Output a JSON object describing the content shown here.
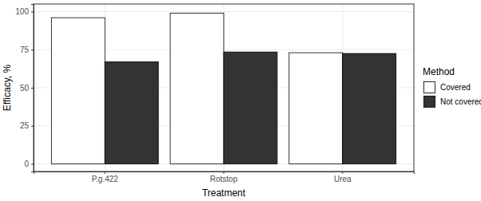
{
  "chart_data": {
    "type": "bar",
    "x_label": "Treatment",
    "y_label": "Efficacy, %",
    "legend_title": "Method",
    "categories": [
      "P.g.422",
      "Rotstop",
      "Urea"
    ],
    "series": [
      {
        "name": "Covered",
        "color": "#ffffff",
        "values": [
          96,
          99,
          73
        ]
      },
      {
        "name": "Not covered",
        "color": "#333333",
        "values": [
          67,
          73.5,
          72.5
        ]
      }
    ],
    "ylim": [
      -5,
      105
    ],
    "yticks": [
      0,
      25,
      50,
      75,
      100
    ],
    "grid": true,
    "legend": "right"
  }
}
